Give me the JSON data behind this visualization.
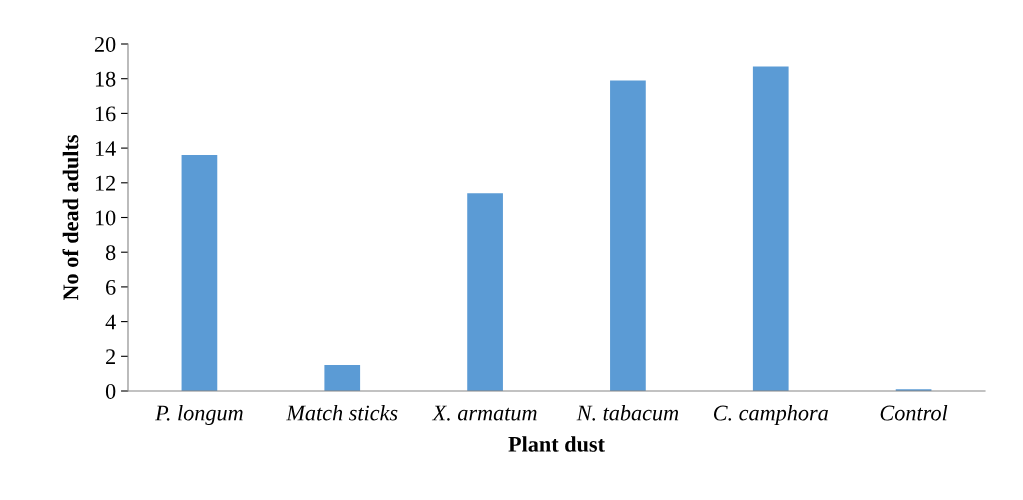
{
  "chart_data": {
    "type": "bar",
    "xlabel": "Plant dust",
    "ylabel": "No of dead adults",
    "categories": [
      "P. longum",
      "Match sticks",
      "X. armatum",
      "N. tabacum",
      "C. camphora",
      "Control"
    ],
    "values": [
      13.6,
      1.5,
      11.4,
      17.9,
      18.7,
      0.1
    ],
    "color": "#5b9bd5",
    "ylim": [
      0,
      20
    ],
    "yticks": [
      0,
      2,
      4,
      6,
      8,
      10,
      12,
      14,
      16,
      18,
      20
    ],
    "grid": false
  }
}
